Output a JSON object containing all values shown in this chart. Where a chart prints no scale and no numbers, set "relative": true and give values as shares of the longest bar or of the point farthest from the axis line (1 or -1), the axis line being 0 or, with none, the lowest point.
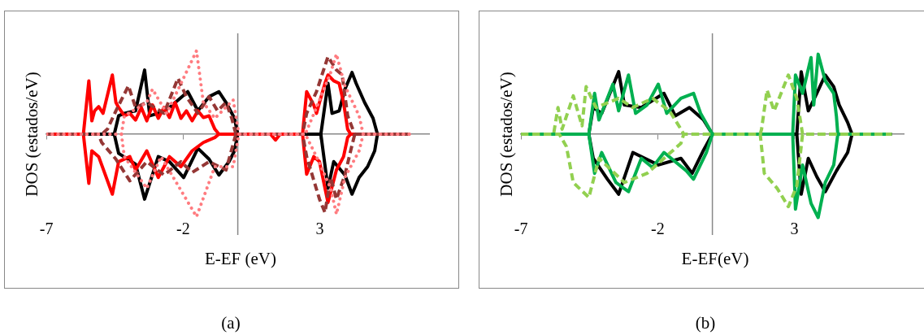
{
  "chart_data": [
    {
      "type": "line",
      "xlabel": "E-EF (eV)",
      "ylabel": "DOS (estados/eV)",
      "relative": true,
      "xlim": [
        -7,
        7
      ],
      "xticks": [
        -7,
        -2,
        3
      ],
      "marker": "none",
      "annotations": [
        "(a)"
      ],
      "series": [
        {
          "color": "#000000",
          "line_style": "solid",
          "x": [
            -7,
            -4.52,
            -4.36,
            -4.15,
            -3.74,
            -3.41,
            -3.22,
            -2.91,
            -2.5,
            -1.83,
            -1.46,
            -1.05,
            -0.69,
            -0.43,
            -0.12,
            0,
            3.04,
            3.3,
            3.45,
            3.71,
            3.92,
            4.18,
            4.33,
            4.64,
            4.95,
            5.11,
            6.3
          ],
          "values": [
            0,
            0,
            0.22,
            0.25,
            0.28,
            0.77,
            0.22,
            0.25,
            0.32,
            0.51,
            0.28,
            0.45,
            0.51,
            0.38,
            0.19,
            0,
            0,
            0.61,
            0.25,
            0.28,
            0.54,
            0.74,
            0.61,
            0.38,
            0.19,
            0,
            0
          ]
        },
        {
          "color": "#000000",
          "line_style": "solid",
          "x": [
            -7,
            -4.52,
            -4.36,
            -3.74,
            -3.41,
            -2.91,
            -2.5,
            -1.98,
            -1.46,
            -1.05,
            -0.69,
            -0.32,
            -0.12,
            0,
            3.04,
            3.3,
            3.51,
            3.92,
            4.18,
            4.44,
            4.75,
            5.01,
            5.11,
            6.3
          ],
          "values": [
            0,
            0,
            -0.23,
            -0.36,
            -0.78,
            -0.27,
            -0.33,
            -0.52,
            -0.17,
            -0.3,
            -0.49,
            -0.33,
            -0.2,
            0,
            0,
            -0.65,
            -0.33,
            -0.49,
            -0.72,
            -0.52,
            -0.39,
            -0.2,
            0,
            0
          ]
        },
        {
          "color": "#ff0000",
          "line_style": "solid",
          "x": [
            -7,
            -5.65,
            -5.45,
            -5.34,
            -5.24,
            -5.09,
            -4.93,
            -4.59,
            -4.46,
            -4.36,
            -4.15,
            -3.95,
            -3.74,
            -3.53,
            -3.33,
            -3.12,
            -2.91,
            -2.7,
            -2.5,
            -2.29,
            -2.08,
            -1.88,
            -1.67,
            -1.46,
            -1.26,
            -1.05,
            -0.84,
            -0.69,
            1.2,
            1.38,
            1.55,
            2.37,
            2.52,
            2.78,
            2.88,
            2.99,
            3.19,
            3.3,
            3.51,
            3.71,
            3.87,
            4.02,
            4.13,
            6.3
          ],
          "values": [
            0,
            0,
            0.64,
            0.16,
            0.28,
            0.33,
            0.25,
            0.71,
            0.38,
            0.32,
            0.22,
            0.25,
            0.17,
            0.32,
            0.16,
            0.35,
            0.19,
            0.32,
            0.2,
            0.38,
            0.19,
            0.28,
            0.16,
            0.28,
            0.2,
            0.22,
            0.06,
            0,
            0,
            -0.07,
            0,
            0,
            0.51,
            0.35,
            0.25,
            0.38,
            0.61,
            0.71,
            0.64,
            0.61,
            0.38,
            0.06,
            0,
            0
          ]
        },
        {
          "color": "#ff0000",
          "line_style": "solid",
          "x": [
            -7,
            -5.65,
            -5.45,
            -5.34,
            -5.09,
            -4.59,
            -4.36,
            -3.95,
            -3.74,
            -3.33,
            -2.91,
            -2.5,
            -2.08,
            -1.67,
            -1.26,
            -0.84,
            -0.69,
            2.37,
            2.52,
            2.78,
            2.99,
            3.3,
            3.61,
            3.87,
            4.02,
            4.13,
            6.3
          ],
          "values": [
            0,
            0,
            -0.59,
            -0.2,
            -0.27,
            -0.72,
            -0.33,
            -0.27,
            -0.43,
            -0.2,
            -0.52,
            -0.27,
            -0.39,
            -0.2,
            -0.1,
            -0.04,
            0,
            0,
            -0.48,
            -0.27,
            -0.33,
            -0.82,
            -0.43,
            -0.27,
            -0.04,
            0,
            0
          ]
        },
        {
          "color": "#953735",
          "line_style": "dashed",
          "x": [
            -7,
            -4.98,
            -4.77,
            -4.46,
            -4.0,
            -3.74,
            -3.33,
            -2.7,
            -2.19,
            -1.88,
            -1.46,
            -1.05,
            -0.74,
            -0.43,
            -0.22,
            -0.07,
            2.37,
            2.52,
            2.88,
            3.3,
            3.61,
            3.82,
            4.02,
            4.28,
            6.3
          ],
          "values": [
            0,
            0,
            0.06,
            0.28,
            0.58,
            0.32,
            0.38,
            0.25,
            0.67,
            0.45,
            0.25,
            0.45,
            0.28,
            0.38,
            0.19,
            0,
            0,
            0.25,
            0.51,
            0.93,
            0.77,
            0.71,
            0.22,
            0,
            0
          ]
        },
        {
          "color": "#953735",
          "line_style": "dashed",
          "x": [
            -7,
            -5.1,
            -4.98,
            -4.46,
            -3.95,
            -3.33,
            -2.7,
            -2.08,
            -1.67,
            -1.05,
            -0.43,
            -0.07,
            2.37,
            2.52,
            2.99,
            3.19,
            3.4,
            3.61,
            3.92,
            4.13,
            4.28,
            6.3
          ],
          "values": [
            0,
            0,
            -0.1,
            -0.3,
            -0.56,
            -0.33,
            -0.49,
            -0.33,
            -0.46,
            -0.33,
            -0.43,
            0,
            0,
            -0.27,
            -0.78,
            -0.94,
            -0.52,
            -0.78,
            -0.49,
            -0.2,
            0,
            0
          ]
        },
        {
          "color": "#ff7c80",
          "line_style": "dotted",
          "x": [
            -7,
            -4.26,
            -4.15,
            -3.33,
            -3.12,
            -2.6,
            -1.51,
            -1.26,
            -0.84,
            -0.17,
            0.04,
            2.47,
            2.88,
            3.4,
            3.61,
            3.92,
            4.44,
            4.59,
            6.3
          ],
          "values": [
            0,
            0,
            0.22,
            0.38,
            0.54,
            0.25,
            1,
            0.38,
            0.19,
            0.41,
            0,
            0,
            0.32,
            0.74,
            0.96,
            0.58,
            0.22,
            0,
            0
          ]
        },
        {
          "color": "#ff7c80",
          "line_style": "dotted",
          "x": [
            -7,
            -4.26,
            -4.15,
            -3.33,
            -2.81,
            -1.51,
            -0.84,
            -0.17,
            0.04,
            2.47,
            2.88,
            3.4,
            3.61,
            3.92,
            4.44,
            4.59,
            6.3
          ],
          "values": [
            0,
            0,
            -0.27,
            -0.65,
            -0.27,
            -0.99,
            -0.39,
            -0.39,
            0,
            0,
            -0.27,
            -0.65,
            -0.96,
            -0.52,
            -0.2,
            0,
            0
          ]
        }
      ]
    },
    {
      "type": "line",
      "xlabel": "E-EF(eV)",
      "ylabel": "DOS (estados/eV)",
      "relative": true,
      "xlim": [
        -7,
        7
      ],
      "xticks": [
        -7,
        -2,
        3
      ],
      "marker": "none",
      "annotations": [
        "(b)"
      ],
      "series": [
        {
          "color": "#000000",
          "line_style": "solid",
          "x": [
            -7,
            -4.52,
            -4.36,
            -4.05,
            -3.43,
            -3.22,
            -2.6,
            -1.77,
            -1.36,
            -0.84,
            -0.32,
            0,
            3.09,
            3.25,
            3.51,
            3.82,
            4.13,
            4.44,
            4.64,
            4.95,
            5.11,
            6.56
          ],
          "values": [
            0,
            0,
            0.32,
            0.25,
            0.75,
            0.35,
            0.32,
            0.49,
            0.22,
            0.32,
            0.17,
            0,
            0,
            0.75,
            0.28,
            0.49,
            0.71,
            0.57,
            0.35,
            0.14,
            0,
            0
          ]
        },
        {
          "color": "#000000",
          "line_style": "solid",
          "x": [
            -7,
            -4.52,
            -4.36,
            -3.84,
            -3.43,
            -2.91,
            -1.98,
            -1.15,
            -0.74,
            -0.32,
            0,
            3.09,
            3.25,
            3.51,
            3.82,
            4.13,
            4.54,
            4.95,
            5.11,
            6.56
          ],
          "values": [
            0,
            0,
            -0.29,
            -0.54,
            -0.72,
            -0.22,
            -0.37,
            -0.29,
            -0.47,
            -0.19,
            0,
            0,
            -0.72,
            -0.29,
            -0.51,
            -0.69,
            -0.44,
            -0.22,
            0,
            0
          ]
        },
        {
          "color": "#00b050",
          "line_style": "solid",
          "x": [
            -7,
            -4.52,
            -4.31,
            -4.15,
            -3.64,
            -3.43,
            -3.07,
            -2.81,
            -2.39,
            -1.98,
            -1.67,
            -1.15,
            -0.69,
            -0.43,
            0,
            2.94,
            3.04,
            3.3,
            3.61,
            3.71,
            3.87,
            4.13,
            4.44,
            4.54,
            4.59,
            6.56
          ],
          "values": [
            0,
            0,
            0.49,
            0.17,
            0.6,
            0.28,
            0.71,
            0.25,
            0.35,
            0.6,
            0.25,
            0.43,
            0.49,
            0.25,
            0,
            0,
            0.71,
            0.49,
            0.92,
            0.35,
            0.96,
            0.64,
            0.49,
            0.21,
            0,
            0
          ]
        },
        {
          "color": "#00b050",
          "line_style": "solid",
          "x": [
            -7,
            -4.52,
            -4.31,
            -4.05,
            -3.53,
            -3.07,
            -2.6,
            -2.19,
            -1.77,
            -0.95,
            -0.69,
            -0.22,
            0,
            2.94,
            3.04,
            3.3,
            3.61,
            3.87,
            4.13,
            4.44,
            4.59,
            6.56
          ],
          "values": [
            0,
            0,
            -0.47,
            -0.22,
            -0.58,
            -0.69,
            -0.29,
            -0.4,
            -0.22,
            -0.44,
            -0.54,
            -0.22,
            0,
            0,
            -0.9,
            -0.37,
            -0.83,
            -1,
            -0.58,
            -0.37,
            0,
            0
          ]
        },
        {
          "color": "#92d050",
          "line_style": "dashed",
          "x": [
            -7,
            -5.81,
            -5.65,
            -5.5,
            -5.09,
            -4.77,
            -4.62,
            -4.26,
            -3.43,
            -2.91,
            -2.19,
            -1.57,
            -1.15,
            -1.05,
            1.75,
            1.8,
            2.0,
            2.26,
            2.78,
            3.09,
            3.3,
            6.56
          ],
          "values": [
            0,
            0,
            0.32,
            0.06,
            0.46,
            0.1,
            0.57,
            0.32,
            0.43,
            0.32,
            0.43,
            0.28,
            0.06,
            0,
            0,
            0.06,
            0.53,
            0.28,
            0.71,
            0.43,
            0,
            0
          ]
        },
        {
          "color": "#92d050",
          "line_style": "dashed",
          "x": [
            -7,
            -5.6,
            -5.34,
            -5.09,
            -4.52,
            -4.15,
            -3.22,
            -2.39,
            -1.77,
            -1.15,
            -1.05,
            1.75,
            1.9,
            2.37,
            2.78,
            3.09,
            3.3,
            6.56
          ],
          "values": [
            0,
            0,
            -0.15,
            -0.58,
            -0.76,
            -0.29,
            -0.58,
            -0.47,
            -0.29,
            -0.11,
            0,
            0,
            -0.47,
            -0.65,
            -0.87,
            -0.62,
            0,
            0
          ]
        }
      ]
    }
  ]
}
